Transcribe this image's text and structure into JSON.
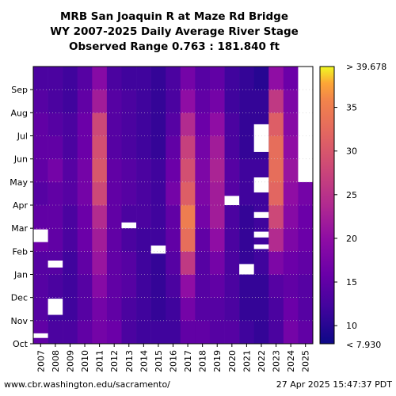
{
  "chart_data": {
    "type": "heatmap",
    "title_lines": [
      "MRB San Joaquin R at Maze Rd Bridge",
      "WY 2007-2025 Daily Average River Stage",
      "Observed Range 0.763 : 181.840 ft"
    ],
    "x_categories": [
      "2007",
      "2008",
      "2009",
      "2010",
      "2011",
      "2012",
      "2013",
      "2014",
      "2015",
      "2016",
      "2017",
      "2018",
      "2019",
      "2020",
      "2021",
      "2022",
      "2023",
      "2024",
      "2025"
    ],
    "y_categories": [
      "Oct",
      "Nov",
      "Dec",
      "Jan",
      "Feb",
      "Mar",
      "Apr",
      "May",
      "Jun",
      "Jul",
      "Aug",
      "Sep"
    ],
    "colorbar": {
      "min": 7.93,
      "max": 39.678,
      "ticks": [
        10,
        15,
        20,
        25,
        30,
        35
      ],
      "top_label": "> 39.678",
      "bottom_label": "< 7.930"
    },
    "monthly_values": [
      {
        "year": "2007",
        "values": [
          15,
          14,
          14,
          14,
          16,
          15,
          14,
          15,
          15,
          15,
          14,
          13
        ]
      },
      {
        "year": "2008",
        "values": [
          13,
          12,
          13,
          14,
          15,
          15,
          15,
          17,
          15,
          14,
          13,
          13
        ]
      },
      {
        "year": "2009",
        "values": [
          13,
          12,
          12,
          12,
          13,
          13,
          14,
          14,
          13,
          13,
          12,
          12
        ]
      },
      {
        "year": "2010",
        "values": [
          15,
          14,
          14,
          15,
          16,
          16,
          17,
          17,
          16,
          16,
          15,
          14
        ]
      },
      {
        "year": "2011",
        "values": [
          17,
          17,
          19,
          21,
          22,
          24,
          28,
          30,
          29,
          28,
          22,
          19
        ]
      },
      {
        "year": "2012",
        "values": [
          16,
          15,
          15,
          15,
          15,
          15,
          15,
          15,
          14,
          14,
          14,
          13
        ]
      },
      {
        "year": "2013",
        "values": [
          13,
          13,
          14,
          14,
          13,
          13,
          14,
          14,
          13,
          13,
          13,
          12
        ]
      },
      {
        "year": "2014",
        "values": [
          12,
          12,
          12,
          12,
          12,
          13,
          13,
          13,
          12,
          12,
          12,
          12
        ]
      },
      {
        "year": "2015",
        "values": [
          12,
          11,
          11,
          11,
          12,
          12,
          12,
          12,
          11,
          11,
          11,
          11
        ]
      },
      {
        "year": "2016",
        "values": [
          12,
          12,
          13,
          14,
          15,
          15,
          17,
          16,
          15,
          14,
          13,
          13
        ]
      },
      {
        "year": "2017",
        "values": [
          15,
          17,
          20,
          26,
          33,
          35,
          31,
          29,
          27,
          24,
          20,
          17
        ]
      },
      {
        "year": "2018",
        "values": [
          15,
          14,
          14,
          14,
          15,
          17,
          18,
          18,
          17,
          16,
          15,
          14
        ]
      },
      {
        "year": "2019",
        "values": [
          14,
          14,
          15,
          17,
          20,
          22,
          22,
          23,
          22,
          20,
          17,
          15
        ]
      },
      {
        "year": "2020",
        "values": [
          14,
          13,
          13,
          13,
          13,
          13,
          14,
          14,
          13,
          13,
          12,
          12
        ]
      },
      {
        "year": "2021",
        "values": [
          12,
          11,
          11,
          11,
          11,
          11,
          12,
          12,
          11,
          11,
          11,
          11
        ]
      },
      {
        "year": "2022",
        "values": [
          11,
          11,
          11,
          12,
          12,
          12,
          12,
          12,
          11,
          11,
          11,
          10
        ]
      },
      {
        "year": "2023",
        "values": [
          13,
          13,
          14,
          18,
          24,
          28,
          32,
          33,
          33,
          31,
          26,
          20
        ]
      },
      {
        "year": "2024",
        "values": [
          17,
          16,
          15,
          16,
          18,
          19,
          20,
          21,
          20,
          19,
          18,
          16
        ]
      },
      {
        "year": "2025",
        "values": [
          15,
          14,
          14,
          15,
          16,
          16,
          17,
          null,
          null,
          null,
          null,
          null
        ]
      }
    ],
    "missing_data_periods": [
      {
        "year": "2007",
        "from": 0.25,
        "to": 0.45
      },
      {
        "year": "2007",
        "from": 4.4,
        "to": 4.95
      },
      {
        "year": "2008",
        "from": 1.25,
        "to": 1.95
      },
      {
        "year": "2008",
        "from": 3.3,
        "to": 3.6
      },
      {
        "year": "2013",
        "from": 5.0,
        "to": 5.25
      },
      {
        "year": "2015",
        "from": 3.9,
        "to": 4.25
      },
      {
        "year": "2020",
        "from": 6.0,
        "to": 6.4
      },
      {
        "year": "2021",
        "from": 3.0,
        "to": 3.45
      },
      {
        "year": "2022",
        "from": 8.3,
        "to": 9.5
      },
      {
        "year": "2022",
        "from": 6.55,
        "to": 7.2
      },
      {
        "year": "2022",
        "from": 5.45,
        "to": 5.7
      },
      {
        "year": "2022",
        "from": 4.6,
        "to": 4.85
      },
      {
        "year": "2022",
        "from": 4.1,
        "to": 4.3
      },
      {
        "year": "2025",
        "from": 7.0,
        "to": 12.0
      }
    ],
    "footer_left": "www.cbr.washington.edu/sacramento/",
    "footer_right": "27 Apr 2025 15:47:37 PDT"
  }
}
